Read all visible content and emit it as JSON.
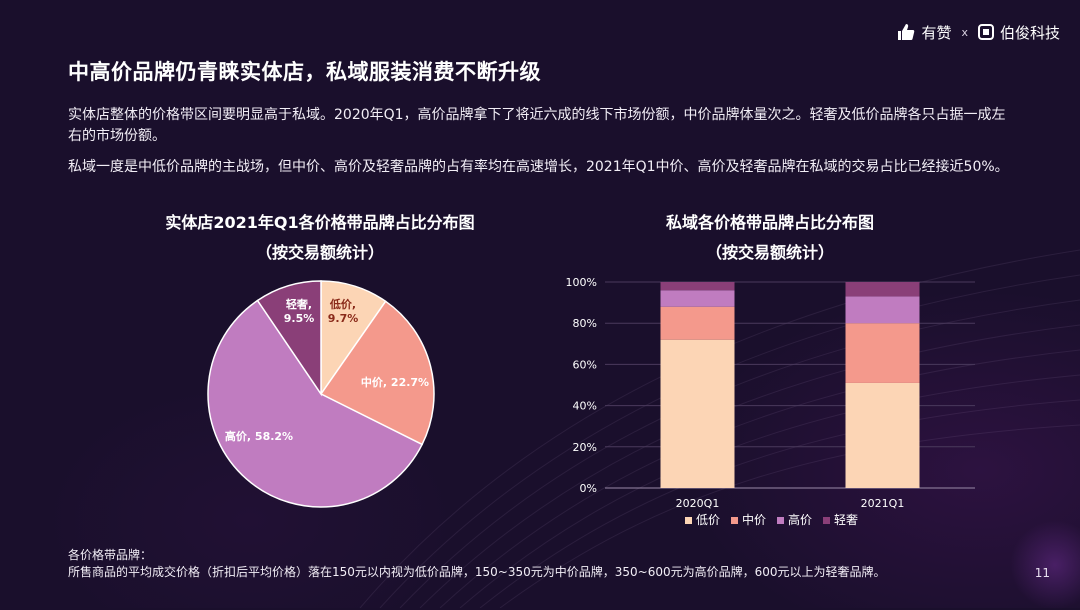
{
  "brand": {
    "name1": "有赞",
    "separator": "x",
    "name2": "伯俊科技"
  },
  "title": "中高价品牌仍青睐实体店，私域服装消费不断升级",
  "paragraphs": {
    "p1": "实体店整体的价格带区间要明显高于私域。2020年Q1，高价品牌拿下了将近六成的线下市场份额，中价品牌体量次之。轻奢及低价品牌各只占据一成左右的市场份额。",
    "p2": "私域一度是中低价品牌的主战场，但中价、高价及轻奢品牌的占有率均在高速增长，2021年Q1中价、高价及轻奢品牌在私域的交易占比已经接近50%。"
  },
  "chart_data": [
    {
      "type": "pie",
      "title_line1": "实体店2021年Q1各价格带品牌占比分布图",
      "title_line2": "（按交易额统计）",
      "slices": [
        {
          "name": "低价",
          "value": 9.7,
          "color": "#fcd5b5",
          "label_color": "#8a2a1a",
          "label": "低价,\n9.7%"
        },
        {
          "name": "中价",
          "value": 22.7,
          "color": "#f4998c",
          "label_color": "#ffffff",
          "label": "中价, 22.7%"
        },
        {
          "name": "高价",
          "value": 58.2,
          "color": "#c07cc0",
          "label_color": "#ffffff",
          "label": "高价, 58.2%"
        },
        {
          "name": "轻奢",
          "value": 9.5,
          "color": "#8a3f78",
          "label_color": "#ffffff",
          "label": "轻奢,\n9.5%"
        }
      ]
    },
    {
      "type": "bar",
      "stacked": true,
      "title_line1": "私域各价格带品牌占比分布图",
      "title_line2": "（按交易额统计）",
      "categories": [
        "2020Q1",
        "2021Q1"
      ],
      "series": [
        {
          "name": "低价",
          "color": "#fcd5b5",
          "values": [
            72,
            51
          ]
        },
        {
          "name": "中价",
          "color": "#f4998c",
          "values": [
            16,
            29
          ]
        },
        {
          "name": "高价",
          "color": "#c07cc0",
          "values": [
            8,
            13
          ]
        },
        {
          "name": "轻奢",
          "color": "#8a3f78",
          "values": [
            4,
            7
          ]
        }
      ],
      "ylim": [
        0,
        100
      ],
      "yticks": [
        "0%",
        "20%",
        "40%",
        "60%",
        "80%",
        "100%"
      ],
      "legend": [
        "低价",
        "中价",
        "高价",
        "轻奢"
      ]
    }
  ],
  "note": {
    "line1": "各价格带品牌：",
    "line2": "所售商品的平均成交价格（折扣后平均价格）落在150元以内视为低价品牌，150~350元为中价品牌，350~600元为高价品牌，600元以上为轻奢品牌。"
  },
  "page_number": "11"
}
